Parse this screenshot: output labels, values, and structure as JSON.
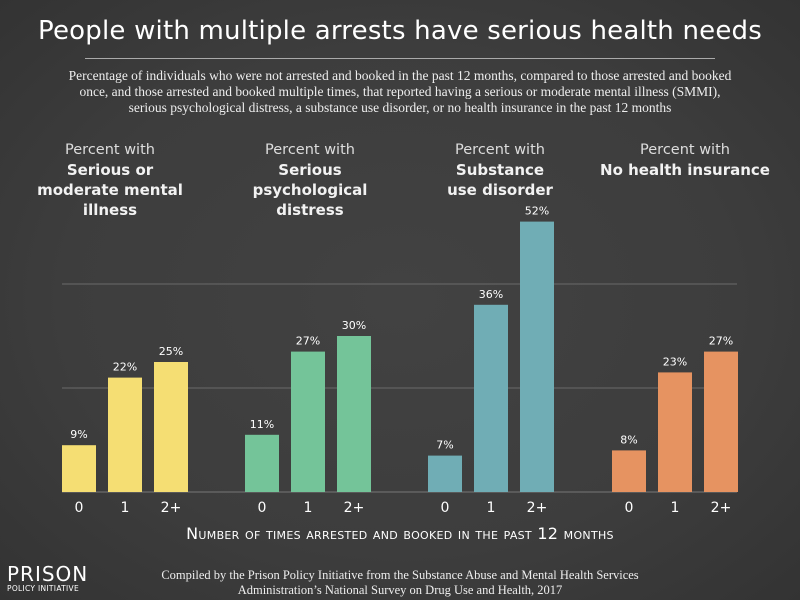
{
  "title": "People with multiple arrests have serious health needs",
  "subtitle": "Percentage of individuals who were not arrested and booked in the past 12 months, compared to those arrested and booked once, and those arrested and booked multiple times, that reported having a serious or moderate mental illness (SMMI), serious psychological distress, a substance use disorder, or no health insurance in the past 12 months",
  "source": "Compiled by the Prison Policy Initiative from the Substance Abuse and Mental Health Services Administration’s National Survey on Drug Use and Health, 2017",
  "logo": {
    "line1": "PRISON",
    "line2": "POLICY INITIATIVE"
  },
  "chart_data": {
    "type": "bar",
    "title": "People with multiple arrests have serious health needs",
    "xlabel": "Number of times arrested and booked in the past 12 months",
    "ylabel": "",
    "ylim": [
      0,
      55
    ],
    "grid": true,
    "gridlines": [
      20,
      40
    ],
    "categories": [
      "0",
      "1",
      "2+"
    ],
    "groups": [
      {
        "prefix": "Percent with",
        "name": "Serious or moderate mental illness",
        "color": "#f5de73",
        "values": [
          9,
          22,
          25
        ],
        "labels": [
          "9%",
          "22%",
          "25%"
        ]
      },
      {
        "prefix": "Percent with",
        "name": "Serious psychological distress",
        "color": "#74c499",
        "values": [
          11,
          27,
          30
        ],
        "labels": [
          "11%",
          "27%",
          "30%"
        ]
      },
      {
        "prefix": "Percent with",
        "name": "Substance use disorder",
        "color": "#70adb5",
        "values": [
          7,
          36,
          52
        ],
        "labels": [
          "7%",
          "36%",
          "52%"
        ]
      },
      {
        "prefix": "Percent with",
        "name": "No health insurance",
        "color": "#e69361",
        "values": [
          8,
          23,
          27
        ],
        "labels": [
          "8%",
          "23%",
          "27%"
        ]
      }
    ]
  }
}
